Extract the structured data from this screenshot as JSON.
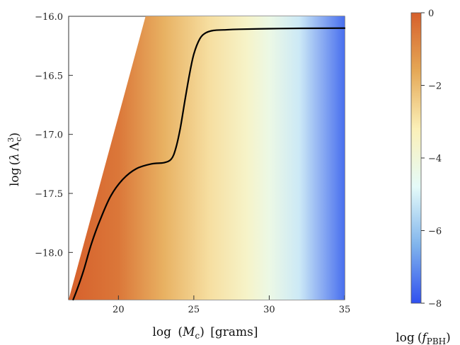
{
  "chart_data": {
    "type": "heatmap",
    "x_axis": {
      "label": "log (M_c) [grams]",
      "label_parts": {
        "prefix": "log",
        "open": "(",
        "symbol": "M",
        "sub": "c",
        "close": ")",
        "suffix": "[grams]"
      },
      "range": [
        16.7,
        35
      ],
      "ticks": [
        20,
        25,
        30,
        35
      ],
      "tick_labels": [
        "20",
        "25",
        "30",
        "35"
      ]
    },
    "y_axis": {
      "label": "log (λ Λ_c^3)",
      "label_parts": {
        "prefix": "log",
        "open": "(",
        "lambda": "λ",
        "Lambda": "Λ",
        "sub": "c",
        "sup": "3",
        "close": ")"
      },
      "range": [
        -18.4,
        -16.0
      ],
      "ticks": [
        -16.0,
        -16.5,
        -17.0,
        -17.5,
        -18.0
      ],
      "tick_labels": [
        "−16.0",
        "−16.5",
        "−17.0",
        "−17.5",
        "−18.0"
      ]
    },
    "colorbar": {
      "label": "log (f_PBH)",
      "label_parts": {
        "prefix": "log",
        "open": "(",
        "symbol": "f",
        "sub": "PBH",
        "close": ")"
      },
      "range": [
        -8,
        0
      ],
      "ticks": [
        0,
        -2,
        -4,
        -6,
        -8
      ],
      "tick_labels": [
        "0",
        "−2",
        "−4",
        "−6",
        "−8"
      ],
      "colormap": [
        "#3050ef",
        "#80b4ec",
        "#e5fbf9",
        "#fbf0b8",
        "#e5a856",
        "#d6602c"
      ]
    },
    "region_boundary": {
      "x": [
        16.7,
        21.8,
        35.0
      ],
      "y": [
        -18.4,
        -16.0,
        -16.0
      ]
    },
    "heat_gradient_by_x": {
      "x": [
        16.7,
        20,
        23,
        26,
        28.5,
        30,
        32,
        35
      ],
      "log_f": [
        0,
        -0.5,
        -1.8,
        -2.8,
        -3.6,
        -4.3,
        -5.2,
        -7.5
      ]
    },
    "contour": {
      "x": [
        17.0,
        17.3,
        17.7,
        18.2,
        18.8,
        19.5,
        20.3,
        21.2,
        22.2,
        23.0,
        23.5,
        23.8,
        24.1,
        24.4,
        24.7,
        25.0,
        25.4,
        25.8,
        26.3,
        27.0,
        28.0,
        30.0,
        32.0,
        35.0
      ],
      "y": [
        -18.4,
        -18.3,
        -18.15,
        -17.93,
        -17.72,
        -17.52,
        -17.38,
        -17.29,
        -17.25,
        -17.24,
        -17.21,
        -17.12,
        -16.95,
        -16.72,
        -16.5,
        -16.32,
        -16.19,
        -16.14,
        -16.12,
        -16.115,
        -16.11,
        -16.105,
        -16.102,
        -16.1
      ]
    },
    "grid": false
  }
}
